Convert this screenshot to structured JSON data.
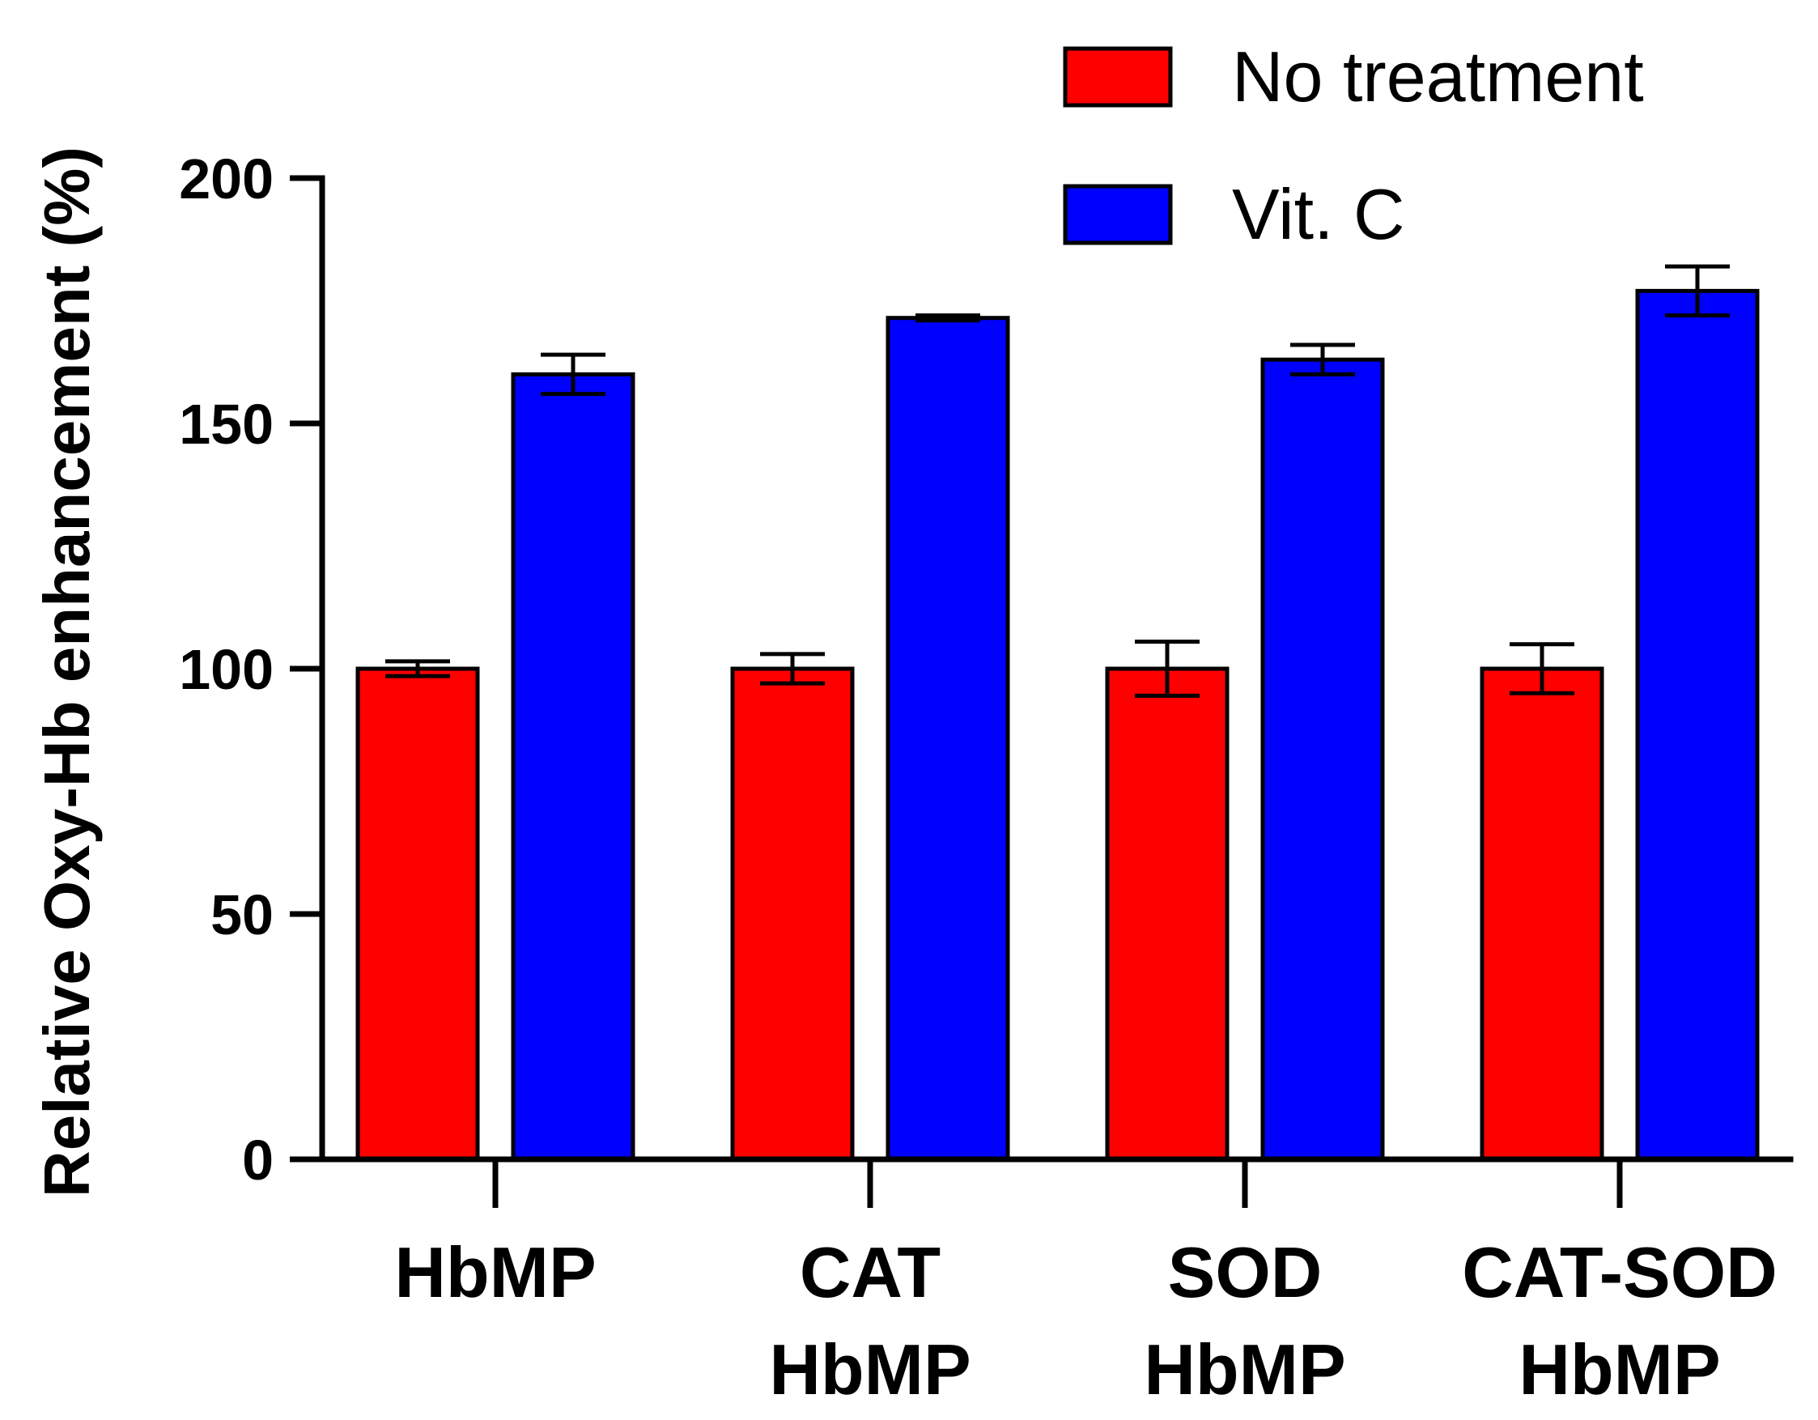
{
  "chart_data": {
    "type": "bar",
    "title": "",
    "xlabel": "",
    "ylabel": "Relative Oxy-Hb enhancement (%)",
    "ylim": [
      0,
      200
    ],
    "yticks": [
      0,
      50,
      100,
      150,
      200
    ],
    "categories": [
      [
        "HbMP"
      ],
      [
        "CAT",
        "HbMP"
      ],
      [
        "SOD",
        "HbMP"
      ],
      [
        "CAT-SOD",
        "HbMP"
      ]
    ],
    "series": [
      {
        "name": "No treatment",
        "color": "#ff0000",
        "values": [
          100,
          100,
          100,
          100
        ],
        "errors": [
          1.5,
          3,
          5.5,
          5
        ]
      },
      {
        "name": "Vit. C",
        "color": "#0000ff",
        "values": [
          160,
          171.5,
          163,
          177
        ],
        "errors": [
          4,
          0.5,
          3,
          5
        ]
      }
    ],
    "legend_position": "top-right",
    "grid": false
  }
}
